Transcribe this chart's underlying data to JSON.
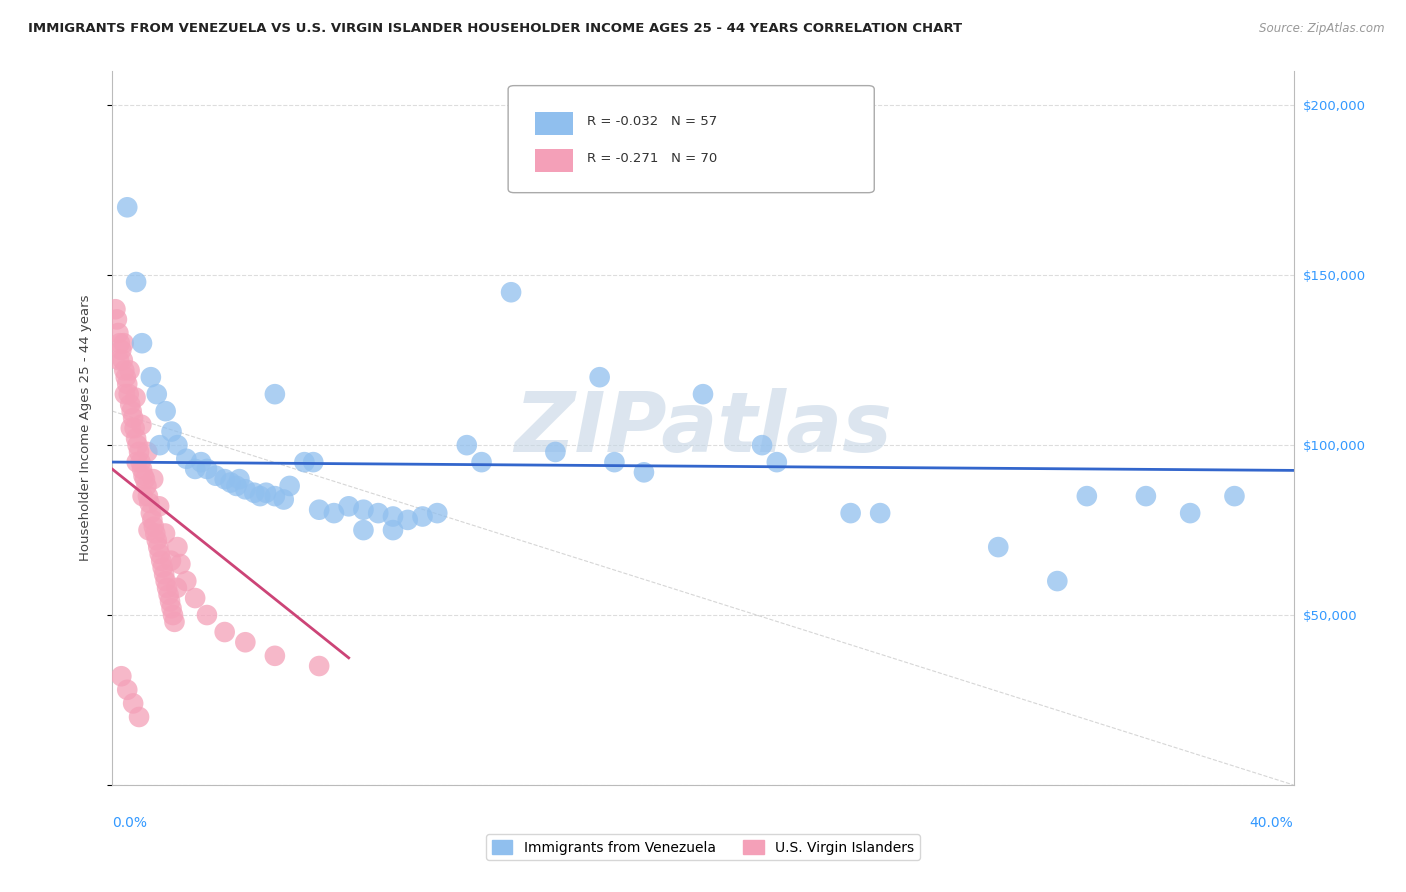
{
  "title": "IMMIGRANTS FROM VENEZUELA VS U.S. VIRGIN ISLANDER HOUSEHOLDER INCOME AGES 25 - 44 YEARS CORRELATION CHART",
  "source": "Source: ZipAtlas.com",
  "ylabel": "Householder Income Ages 25 - 44 years",
  "xlim": [
    0.0,
    40.0
  ],
  "ylim": [
    0,
    210000
  ],
  "yticks": [
    0,
    50000,
    100000,
    150000,
    200000
  ],
  "ytick_labels_right": [
    "",
    "$50,000",
    "$100,000",
    "$150,000",
    "$200,000"
  ],
  "legend_r1": "R = -0.032   N = 57",
  "legend_r2": "R = -0.271   N = 70",
  "blue_color": "#90BFEE",
  "pink_color": "#F4A0B8",
  "blue_line_color": "#3366CC",
  "pink_line_color": "#CC4477",
  "watermark": "ZIPatlas",
  "watermark_color": "#C5D5E5",
  "blue_x": [
    0.5,
    0.8,
    1.0,
    1.3,
    1.5,
    1.8,
    2.0,
    2.2,
    2.5,
    2.8,
    3.0,
    3.2,
    3.5,
    3.8,
    4.0,
    4.2,
    4.5,
    4.8,
    5.0,
    5.2,
    5.5,
    5.8,
    6.0,
    6.5,
    7.0,
    7.5,
    8.0,
    8.5,
    9.0,
    9.5,
    10.0,
    10.5,
    11.0,
    12.0,
    13.5,
    15.0,
    17.0,
    18.0,
    20.0,
    22.0,
    25.0,
    30.0,
    32.0,
    35.0,
    36.5,
    38.0,
    5.5,
    8.5,
    12.5,
    16.5,
    22.5,
    26.0,
    33.0,
    1.6,
    4.3,
    6.8,
    9.5
  ],
  "blue_y": [
    170000,
    148000,
    130000,
    120000,
    115000,
    110000,
    104000,
    100000,
    96000,
    93000,
    95000,
    93000,
    91000,
    90000,
    89000,
    88000,
    87000,
    86000,
    85000,
    86000,
    85000,
    84000,
    88000,
    95000,
    81000,
    80000,
    82000,
    81000,
    80000,
    79000,
    78000,
    79000,
    80000,
    100000,
    145000,
    98000,
    95000,
    92000,
    115000,
    100000,
    80000,
    70000,
    60000,
    85000,
    80000,
    85000,
    115000,
    75000,
    95000,
    120000,
    95000,
    80000,
    85000,
    100000,
    90000,
    95000,
    75000
  ],
  "pink_x": [
    0.1,
    0.15,
    0.2,
    0.25,
    0.3,
    0.35,
    0.4,
    0.45,
    0.5,
    0.55,
    0.6,
    0.65,
    0.7,
    0.75,
    0.8,
    0.85,
    0.9,
    0.95,
    1.0,
    1.05,
    1.1,
    1.15,
    1.2,
    1.25,
    1.3,
    1.35,
    1.4,
    1.45,
    1.5,
    1.55,
    1.6,
    1.65,
    1.7,
    1.75,
    1.8,
    1.85,
    1.9,
    1.95,
    2.0,
    2.05,
    2.1,
    2.2,
    2.3,
    2.5,
    2.8,
    3.2,
    3.8,
    4.5,
    5.5,
    7.0,
    0.38,
    0.58,
    0.78,
    0.98,
    1.18,
    1.38,
    1.58,
    1.78,
    1.98,
    2.18,
    0.22,
    0.42,
    0.62,
    0.82,
    1.02,
    1.22,
    0.3,
    0.5,
    0.7,
    0.9
  ],
  "pink_y": [
    140000,
    137000,
    133000,
    130000,
    128000,
    125000,
    122000,
    120000,
    118000,
    115000,
    112000,
    110000,
    108000,
    105000,
    102000,
    100000,
    98000,
    95000,
    93000,
    91000,
    90000,
    88000,
    85000,
    83000,
    80000,
    78000,
    76000,
    74000,
    72000,
    70000,
    68000,
    66000,
    64000,
    62000,
    60000,
    58000,
    56000,
    54000,
    52000,
    50000,
    48000,
    70000,
    65000,
    60000,
    55000,
    50000,
    45000,
    42000,
    38000,
    35000,
    130000,
    122000,
    114000,
    106000,
    98000,
    90000,
    82000,
    74000,
    66000,
    58000,
    125000,
    115000,
    105000,
    95000,
    85000,
    75000,
    32000,
    28000,
    24000,
    20000
  ]
}
